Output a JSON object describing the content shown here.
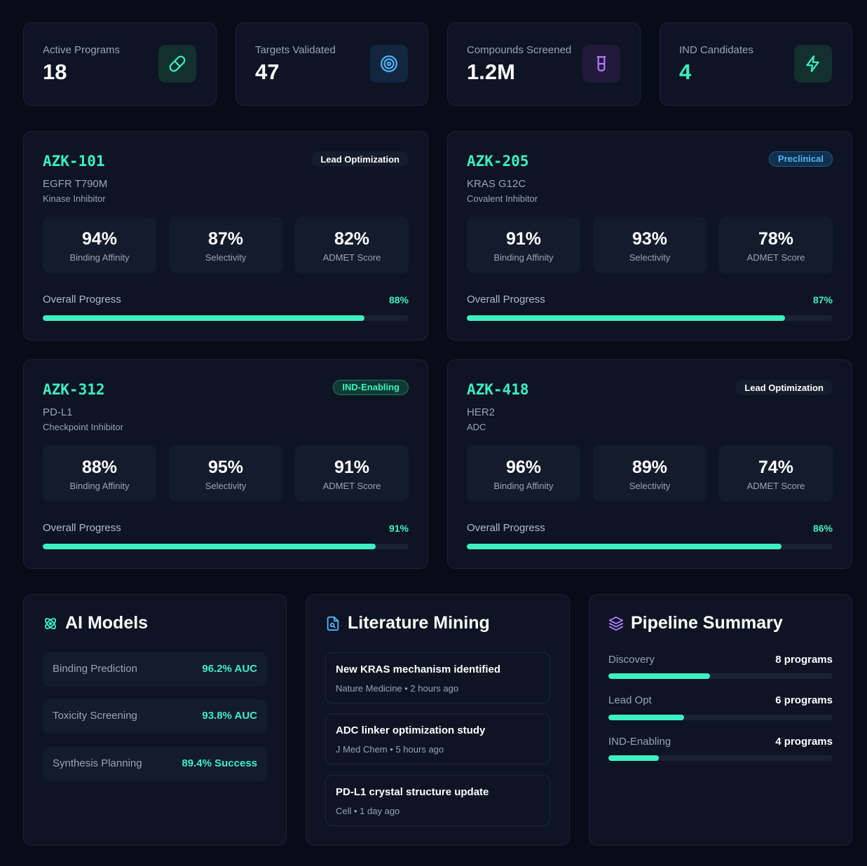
{
  "stats": [
    {
      "label": "Active Programs",
      "value": "18",
      "icon": "pill-icon"
    },
    {
      "label": "Targets Validated",
      "value": "47",
      "icon": "target-icon"
    },
    {
      "label": "Compounds Screened",
      "value": "1.2M",
      "icon": "beaker-icon"
    },
    {
      "label": "IND Candidates",
      "value": "4",
      "icon": "lightning-icon"
    }
  ],
  "programs": [
    {
      "code": "AZK-101",
      "target": "EGFR T790M",
      "mechanism": "Kinase Inhibitor",
      "stage": "Lead Optimization",
      "metrics": [
        {
          "value": "94%",
          "label": "Binding Affinity"
        },
        {
          "value": "87%",
          "label": "Selectivity"
        },
        {
          "value": "82%",
          "label": "ADMET Score"
        }
      ],
      "progress_label": "Overall Progress",
      "progress": "88%",
      "progress_value": 88
    },
    {
      "code": "AZK-205",
      "target": "KRAS G12C",
      "mechanism": "Covalent Inhibitor",
      "stage": "Preclinical",
      "metrics": [
        {
          "value": "91%",
          "label": "Binding Affinity"
        },
        {
          "value": "93%",
          "label": "Selectivity"
        },
        {
          "value": "78%",
          "label": "ADMET Score"
        }
      ],
      "progress_label": "Overall Progress",
      "progress": "87%",
      "progress_value": 87
    },
    {
      "code": "AZK-312",
      "target": "PD-L1",
      "mechanism": "Checkpoint Inhibitor",
      "stage": "IND-Enabling",
      "metrics": [
        {
          "value": "88%",
          "label": "Binding Affinity"
        },
        {
          "value": "95%",
          "label": "Selectivity"
        },
        {
          "value": "91%",
          "label": "ADMET Score"
        }
      ],
      "progress_label": "Overall Progress",
      "progress": "91%",
      "progress_value": 91
    },
    {
      "code": "AZK-418",
      "target": "HER2",
      "mechanism": "ADC",
      "stage": "Lead Optimization",
      "metrics": [
        {
          "value": "96%",
          "label": "Binding Affinity"
        },
        {
          "value": "89%",
          "label": "Selectivity"
        },
        {
          "value": "74%",
          "label": "ADMET Score"
        }
      ],
      "progress_label": "Overall Progress",
      "progress": "86%",
      "progress_value": 86
    }
  ],
  "ai_models": {
    "title": "AI Models",
    "items": [
      {
        "name": "Binding Prediction",
        "score": "96.2% AUC"
      },
      {
        "name": "Toxicity Screening",
        "score": "93.8% AUC"
      },
      {
        "name": "Synthesis Planning",
        "score": "89.4% Success"
      }
    ]
  },
  "literature": {
    "title": "Literature Mining",
    "items": [
      {
        "title": "New KRAS mechanism identified",
        "source": "Nature Medicine • 2 hours ago"
      },
      {
        "title": "ADC linker optimization study",
        "source": "J Med Chem • 5 hours ago"
      },
      {
        "title": "PD-L1 crystal structure update",
        "source": "Cell • 1 day ago"
      }
    ]
  },
  "pipeline": {
    "title": "Pipeline Summary",
    "items": [
      {
        "label": "Discovery",
        "count": "8 programs",
        "value": 8
      },
      {
        "label": "Lead Opt",
        "count": "6 programs",
        "value": 6
      },
      {
        "label": "IND-Enabling",
        "count": "4 programs",
        "value": 4
      }
    ],
    "scale_max": 17.7
  },
  "colors": {
    "accent": "#3df0c3",
    "blue": "#4fb7ff",
    "purple": "#b07cff",
    "background": "#080c18"
  }
}
